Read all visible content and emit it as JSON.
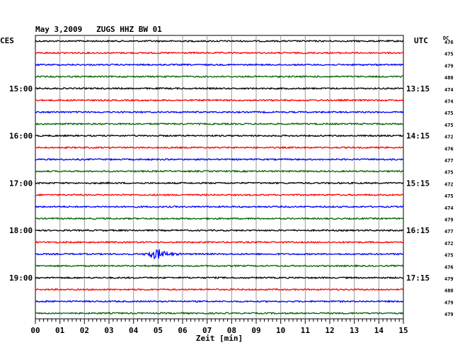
{
  "header": {
    "title": "May 3,2009   ZUGS HHZ BW 01",
    "left_zone": "CES",
    "right_zone": "UTC",
    "dc_label": "DC"
  },
  "chart_data": {
    "type": "line",
    "title": "May 3,2009   ZUGS HHZ BW 01",
    "xlabel": "Zeit [min]",
    "ylabel": "",
    "x_ticks": [
      "00",
      "01",
      "02",
      "03",
      "04",
      "05",
      "06",
      "07",
      "08",
      "09",
      "10",
      "11",
      "12",
      "13",
      "14",
      "15"
    ],
    "xlim": [
      0,
      15
    ],
    "grid": true,
    "trace_colors": [
      "#000000",
      "#ff0000",
      "#0000ff",
      "#006400"
    ],
    "left_hour_labels": [
      {
        "trace": 4,
        "label": "15:00"
      },
      {
        "trace": 8,
        "label": "16:00"
      },
      {
        "trace": 12,
        "label": "17:00"
      },
      {
        "trace": 16,
        "label": "18:00"
      },
      {
        "trace": 20,
        "label": "19:00"
      }
    ],
    "right_hour_labels": [
      {
        "trace": 4,
        "label": "13:15"
      },
      {
        "trace": 8,
        "label": "14:15"
      },
      {
        "trace": 12,
        "label": "15:15"
      },
      {
        "trace": 16,
        "label": "16:15"
      },
      {
        "trace": 20,
        "label": "17:15"
      }
    ],
    "dc_values": [
      "476",
      "475",
      "479",
      "480",
      "474",
      "474",
      "475",
      "475",
      "472",
      "476",
      "477",
      "475",
      "472",
      "475",
      "474",
      "479",
      "477",
      "472",
      "475",
      "476",
      "479",
      "480",
      "479",
      "479"
    ],
    "events": [
      {
        "trace": 18,
        "start_min": 4.4,
        "peak_min": 5.0,
        "end_min": 6.1
      }
    ]
  }
}
